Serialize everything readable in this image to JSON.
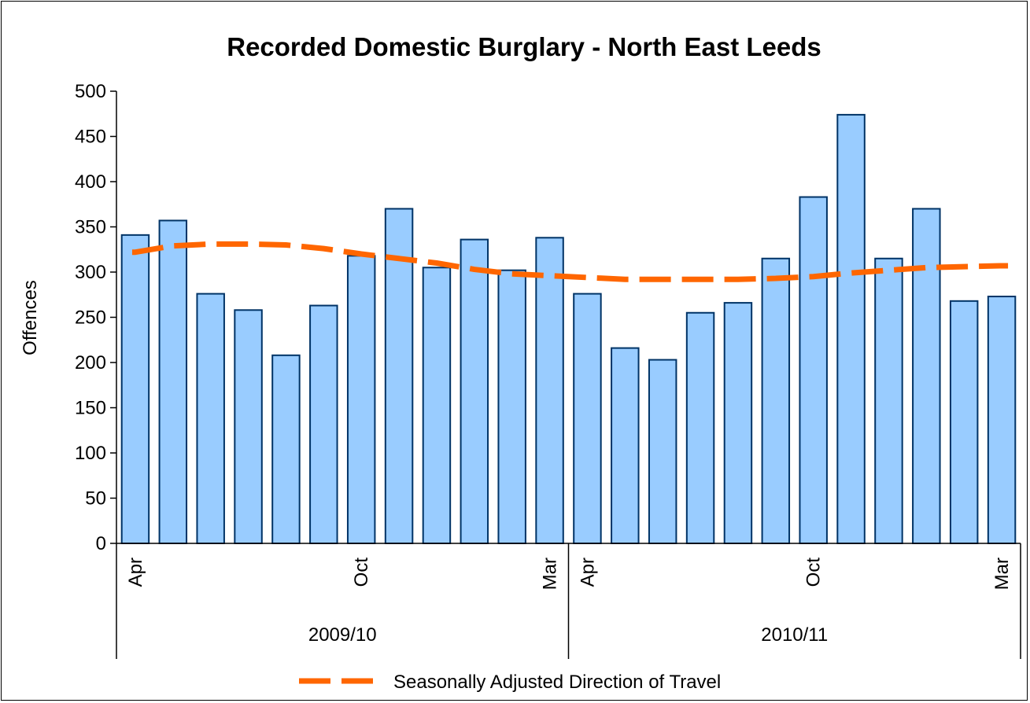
{
  "chart_data": {
    "type": "bar",
    "title": "Recorded Domestic Burglary - North East Leeds",
    "ylabel": "Offences",
    "xlabel": "",
    "ylim": [
      0,
      500
    ],
    "yticks": [
      0,
      50,
      100,
      150,
      200,
      250,
      300,
      350,
      400,
      450,
      500
    ],
    "grid": false,
    "groups": [
      {
        "label": "2009/10",
        "tick_labels": [
          "Apr",
          "",
          "",
          "",
          "",
          "",
          "Oct",
          "",
          "",
          "",
          "",
          "Mar"
        ]
      },
      {
        "label": "2010/11",
        "tick_labels": [
          "Apr",
          "",
          "",
          "",
          "",
          "",
          "Oct",
          "",
          "",
          "",
          "",
          "Mar"
        ]
      }
    ],
    "series": [
      {
        "type": "bar",
        "color": "#99ccff",
        "edge_color": "#003366",
        "values": [
          341,
          357,
          276,
          258,
          208,
          263,
          318,
          370,
          305,
          336,
          302,
          338,
          276,
          216,
          203,
          255,
          266,
          315,
          383,
          474,
          315,
          370,
          268,
          273
        ]
      },
      {
        "name": "Seasonally Adjusted Direction of Travel",
        "type": "line",
        "style": "dashed",
        "color": "#ff6600",
        "values": [
          322,
          329,
          331,
          331,
          330,
          326,
          320,
          315,
          310,
          303,
          298,
          296,
          294,
          292,
          292,
          292,
          292,
          293,
          295,
          299,
          302,
          305,
          306,
          307
        ]
      }
    ],
    "legend": {
      "placement": "bottom",
      "label": "Seasonally Adjusted Direction of Travel"
    }
  }
}
